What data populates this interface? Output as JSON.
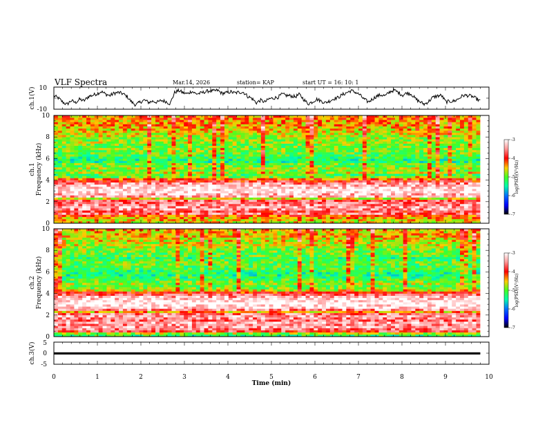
{
  "header": {
    "title": "VLF Spectra",
    "date": "Mar.14, 2026",
    "station": "station= KAP",
    "start_ut": "start  UT  =   16: 10: 1"
  },
  "chart_data": [
    {
      "type": "line",
      "name": "ch1-voltage",
      "ylabel": "ch.1(V)",
      "ylim": [
        -10,
        10
      ],
      "yticks": [
        "10",
        "-10"
      ],
      "xlim": [
        0,
        9.8
      ],
      "y": [
        2.1,
        0.2,
        -3.4,
        -5.8,
        -2.2,
        -4.1,
        -1.0,
        -2.5,
        1.4,
        2.6,
        4.0,
        6.0,
        3.7,
        2.3,
        4.5,
        5.1,
        4.0,
        1.5,
        -3.3,
        -6.2,
        -3.6,
        -1.7,
        -3.9,
        -2.7,
        -3.8,
        -2.1,
        -3.0,
        -5.1,
        5.0,
        6.9,
        4.9,
        3.9,
        6.3,
        3.9,
        4.4,
        5.6,
        6.6,
        6.3,
        7.1,
        4.4,
        4.7,
        5.8,
        4.6,
        5.4,
        5.4,
        1.6,
        -0.3,
        -4.2,
        -1.9,
        -3.5,
        -0.6,
        0.1,
        0.8,
        3.6,
        2.4,
        2.1,
        1.2,
        3.4,
        -1.1,
        -5.2,
        -3.4,
        -0.9,
        -2.5,
        -4.2,
        -2.6,
        -0.5,
        0.6,
        3.1,
        5.0,
        6.8,
        5.4,
        3.1,
        -0.9,
        -3.5,
        -0.7,
        1.9,
        2.9,
        2.1,
        5.8,
        7.2,
        5.1,
        2.6,
        4.8,
        3.7,
        -0.8,
        -3.4,
        -5.5,
        -3.0,
        0.7,
        2.0,
        2.5,
        -3.4,
        -2.9,
        -2.6,
        -0.4,
        2.5,
        2.4,
        1.8,
        -0.3,
        -2.7
      ]
    },
    {
      "type": "heatmap",
      "name": "ch1-spectrogram",
      "title": "ch.1",
      "ylabel": "Frequency (kHz)",
      "xlim": [
        0,
        9.8
      ],
      "ylim": [
        0,
        10
      ],
      "yticks": [
        "0",
        "2",
        "4",
        "6",
        "8",
        "10"
      ],
      "color_scale": {
        "label": "log(PSD)(V²/Hz)",
        "range": [
          -7,
          -3
        ],
        "ticks": [
          "-3",
          "-4",
          "-5",
          "-6",
          "-7"
        ]
      },
      "freq_bins_khz": [
        0.1,
        0.3,
        0.5,
        0.7,
        0.9,
        1.1,
        1.3,
        1.5,
        1.7,
        1.9,
        2.1,
        2.3,
        2.5,
        2.7,
        2.9,
        3.1,
        3.3,
        3.5,
        3.7,
        3.9,
        4.1,
        4.3,
        4.5,
        4.7,
        4.9,
        5.1,
        5.3,
        5.5,
        5.7,
        5.9,
        6.1,
        6.3,
        6.5,
        6.7,
        6.9,
        7.1,
        7.3,
        7.5,
        7.7,
        7.9,
        8.1,
        8.3,
        8.5,
        8.7,
        8.9,
        9.1,
        9.3,
        9.5,
        9.7,
        9.9
      ],
      "mean_log_psd": [
        -4.6,
        -4.5,
        -4.4,
        -4.1,
        -3.6,
        -3.8,
        -3.5,
        -3.4,
        -3.5,
        -3.6,
        -3.7,
        -4.6,
        -3.4,
        -3.3,
        -3.1,
        -3.1,
        -3.2,
        -3.3,
        -3.5,
        -3.9,
        -4.2,
        -4.9,
        -5.1,
        -4.7,
        -5.0,
        -4.8,
        -5.0,
        -5.0,
        -5.3,
        -5.3,
        -5.2,
        -5.1,
        -5.0,
        -4.9,
        -4.9,
        -5.0,
        -4.9,
        -4.8,
        -4.9,
        -4.8,
        -4.7,
        -4.6,
        -4.6,
        -4.5,
        -4.5,
        -4.4,
        -4.4,
        -4.4,
        -4.3,
        -4.3
      ]
    },
    {
      "type": "heatmap",
      "name": "ch2-spectrogram",
      "title": "ch.2",
      "ylabel": "Frequency (kHz)",
      "xlim": [
        0,
        9.8
      ],
      "ylim": [
        0,
        10
      ],
      "yticks": [
        "0",
        "2",
        "4",
        "6",
        "8",
        "10"
      ],
      "color_scale": {
        "label": "log(PSD)(V²/Hz)",
        "range": [
          -7,
          -3
        ],
        "ticks": [
          "-3",
          "-4",
          "-5",
          "-6",
          "-7"
        ]
      },
      "freq_bins_khz": [
        0.1,
        0.3,
        0.5,
        0.7,
        0.9,
        1.1,
        1.3,
        1.5,
        1.7,
        1.9,
        2.1,
        2.3,
        2.5,
        2.7,
        2.9,
        3.1,
        3.3,
        3.5,
        3.7,
        3.9,
        4.1,
        4.3,
        4.5,
        4.7,
        4.9,
        5.1,
        5.3,
        5.5,
        5.7,
        5.9,
        6.1,
        6.3,
        6.5,
        6.7,
        6.9,
        7.1,
        7.3,
        7.5,
        7.7,
        7.9,
        8.1,
        8.3,
        8.5,
        8.7,
        8.9,
        9.1,
        9.3,
        9.5,
        9.7,
        9.9
      ],
      "mean_log_psd": [
        -5.2,
        -4.8,
        -3.8,
        -3.6,
        -3.4,
        -3.5,
        -3.3,
        -3.6,
        -3.5,
        -3.4,
        -3.6,
        -4.4,
        -3.5,
        -3.2,
        -3.1,
        -3.0,
        -3.1,
        -3.2,
        -3.4,
        -3.7,
        -4.0,
        -4.6,
        -4.9,
        -5.0,
        -4.8,
        -5.0,
        -5.1,
        -5.2,
        -5.3,
        -5.3,
        -5.2,
        -5.1,
        -5.1,
        -5.0,
        -5.0,
        -5.1,
        -5.2,
        -5.0,
        -5.0,
        -4.9,
        -4.9,
        -4.8,
        -4.7,
        -4.7,
        -4.6,
        -4.6,
        -4.5,
        -4.5,
        -4.5,
        -4.4
      ]
    },
    {
      "type": "line",
      "name": "ch3-voltage",
      "ylabel": "ch.3(V)",
      "ylim": [
        -5,
        5
      ],
      "yticks": [
        "5",
        "0",
        "-5"
      ],
      "xlim": [
        0,
        9.8
      ],
      "y": [
        -0.1,
        -0.1,
        -0.1,
        -0.1,
        -0.1,
        -0.1,
        -0.1,
        -0.1,
        -0.1,
        -0.1,
        -0.1,
        -0.1,
        -0.1,
        -0.1,
        -0.1,
        -0.1,
        -0.1,
        -0.1,
        -0.1,
        -0.1,
        -0.1,
        -0.1,
        -0.1,
        -0.1,
        -0.1,
        -0.1,
        -0.1,
        -0.1,
        -0.1,
        -0.1,
        -0.1,
        -0.1,
        -0.1,
        -0.1,
        -0.1,
        -0.1,
        -0.1,
        -0.1,
        -0.1,
        -0.1,
        -0.1,
        -0.1,
        -0.1,
        -0.1,
        -0.1,
        -0.1,
        -0.1,
        -0.1,
        -0.1,
        -0.1
      ],
      "noise_band": 0.5
    }
  ],
  "x_axis": {
    "label": "Time (min)",
    "ticks": [
      "0",
      "1",
      "2",
      "3",
      "4",
      "5",
      "6",
      "7",
      "8",
      "9",
      "10"
    ],
    "range": [
      0,
      10
    ]
  },
  "colors": {
    "line": "#000000",
    "frame": "#000000"
  }
}
